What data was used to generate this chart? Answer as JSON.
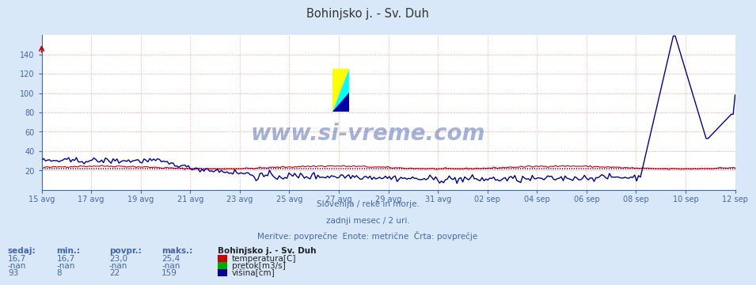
{
  "title": "Bohinjsko j. - Sv. Duh",
  "title_color": "#333333",
  "bg_color": "#d8e8f8",
  "plot_bg_color": "#ffffff",
  "text_color": "#4466aa",
  "watermark": "www.si-vreme.com",
  "subtitle1": "Slovenija / reke in morje.",
  "subtitle2": "zadnji mesec / 2 uri.",
  "subtitle3": "Meritve: povprečne  Enote: metrične  Črta: povprečje",
  "ylim": [
    0,
    160
  ],
  "xtick_labels": [
    "15 avg",
    "17 avg",
    "19 avg",
    "21 avg",
    "23 avg",
    "25 avg",
    "27 avg",
    "29 avg",
    "31 avg",
    "02 sep",
    "04 sep",
    "06 sep",
    "08 sep",
    "10 sep",
    "12 sep"
  ],
  "num_points": 360,
  "temp_color": "#cc0000",
  "flow_color": "#00aa00",
  "height_color": "#000099",
  "legend_station": "Bohinjsko j. - Sv. Duh",
  "legend_temp": "temperatura[C]",
  "legend_flow": "pretok[m3/s]",
  "legend_height": "višina[cm]",
  "table_headers": [
    "sedaj:",
    "min.:",
    "povpr.:",
    "maks.:"
  ],
  "table_temp": [
    "16,7",
    "16,7",
    "23,0",
    "25,4"
  ],
  "table_flow": [
    "-nan",
    "-nan",
    "-nan",
    "-nan"
  ],
  "table_height": [
    "93",
    "8",
    "22",
    "159"
  ]
}
